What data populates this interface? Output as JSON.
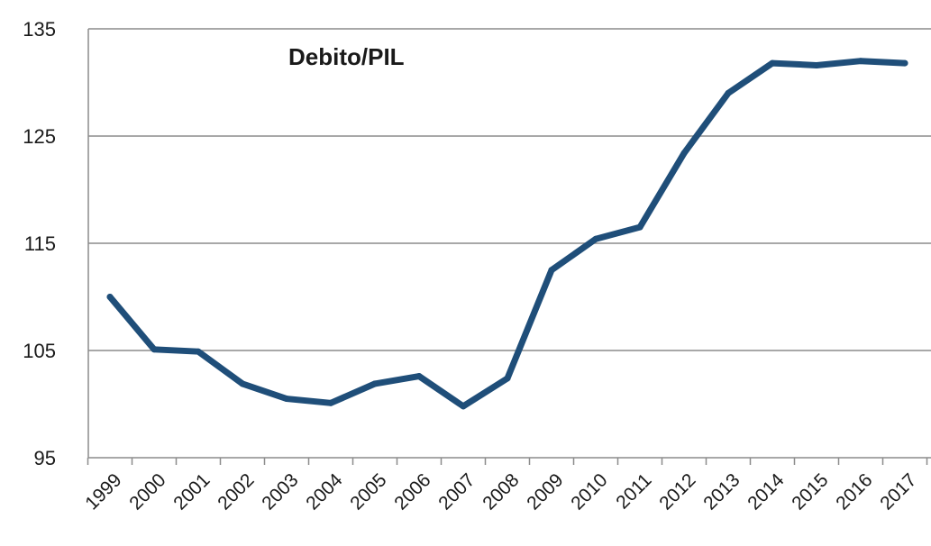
{
  "chart_data": {
    "type": "line",
    "title": "Debito/PIL",
    "xlabel": "",
    "ylabel": "",
    "categories": [
      "1999",
      "2000",
      "2001",
      "2002",
      "2003",
      "2004",
      "2005",
      "2006",
      "2007",
      "2008",
      "2009",
      "2010",
      "2011",
      "2012",
      "2013",
      "2014",
      "2015",
      "2016",
      "2017"
    ],
    "series": [
      {
        "values": [
          110.0,
          105.1,
          104.9,
          101.9,
          100.5,
          100.1,
          101.9,
          102.6,
          99.8,
          102.4,
          112.5,
          115.4,
          116.5,
          123.4,
          129.0,
          131.8,
          131.6,
          132.0,
          131.8
        ],
        "color": "#1f4e79"
      }
    ],
    "ylim": [
      95,
      135
    ],
    "yticks": [
      95,
      105,
      115,
      125,
      135
    ],
    "grid": true,
    "legend": "none"
  }
}
